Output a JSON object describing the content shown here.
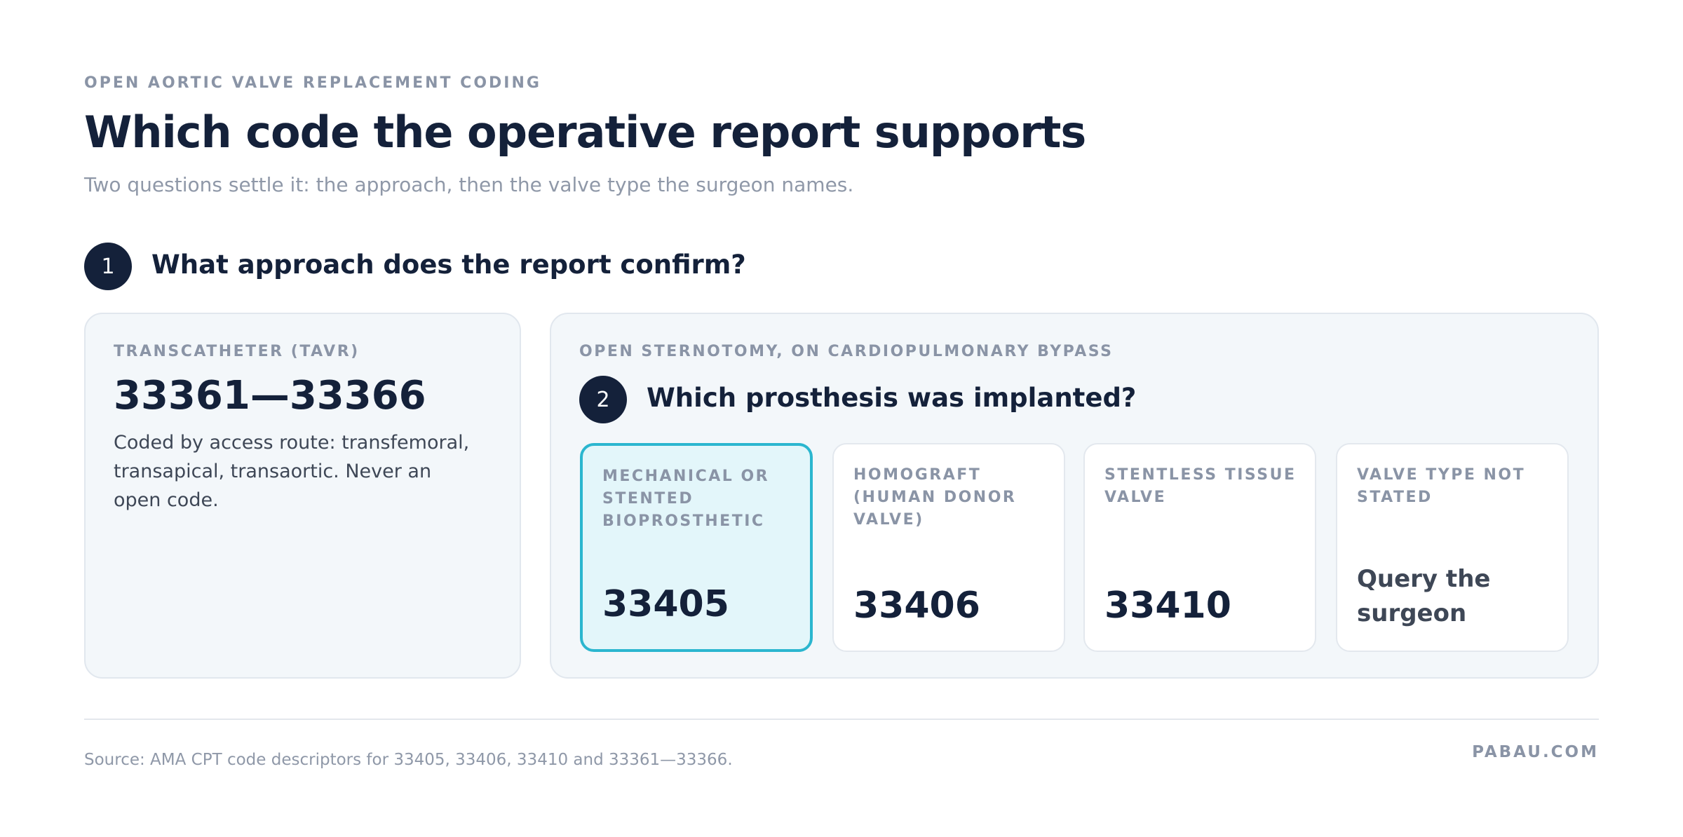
{
  "header": {
    "eyebrow": "OPEN AORTIC VALVE REPLACEMENT CODING",
    "title": "Which code the operative report supports",
    "subtitle": "Two questions settle it: the approach, then the valve type the surgeon names."
  },
  "step1": {
    "number": "1",
    "question": "What approach does the report confirm?"
  },
  "tavr": {
    "label": "TRANSCATHETER (TAVR)",
    "code": "33361—33366",
    "description": "Coded by access route: transfemoral, transapical, transaortic. Never an open code."
  },
  "open": {
    "label": "OPEN STERNOTOMY, ON CARDIOPULMONARY BYPASS",
    "step2": {
      "number": "2",
      "question": "Which prosthesis was implanted?"
    },
    "options": [
      {
        "label": "MECHANICAL OR STENTED BIOPROSTHETIC",
        "code": "33405"
      },
      {
        "label": "HOMOGRAFT (HUMAN DONOR VALVE)",
        "code": "33406"
      },
      {
        "label": "STENTLESS TISSUE VALVE",
        "code": "33410"
      },
      {
        "label": "VALVE TYPE NOT STATED",
        "action": "Query the surgeon"
      }
    ]
  },
  "footer": {
    "source": "Source: AMA CPT code descriptors for 33405, 33406, 33410 and 33361—33366.",
    "brand": "PABAU.COM"
  }
}
